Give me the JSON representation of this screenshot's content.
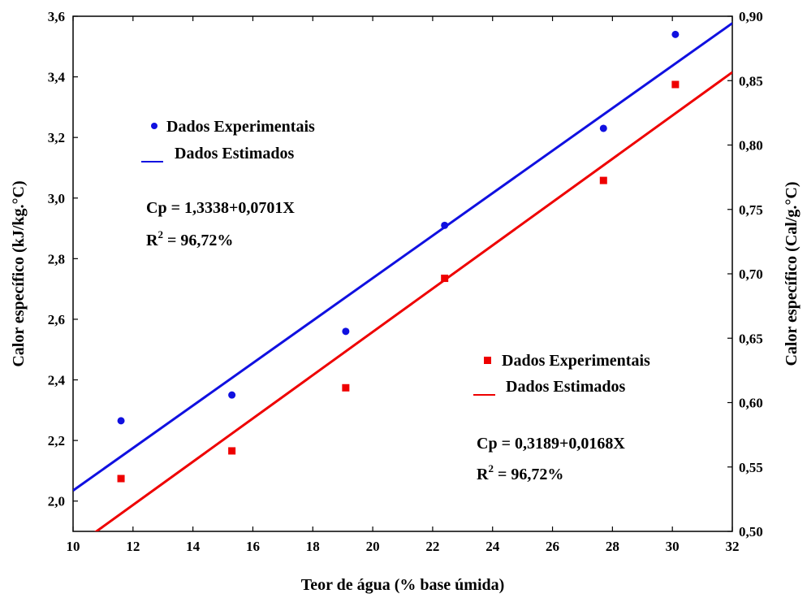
{
  "chart_data": {
    "type": "scatter",
    "xlabel": "Teor de água (% base úmida)",
    "ylabel": "Calor específico (kJ/kg.°C)",
    "ylabel_right": "Calor específico (Cal/g.°C)",
    "xlim": [
      10,
      32
    ],
    "ylim": [
      1.9,
      3.6
    ],
    "ylim_right": [
      0.5,
      0.9
    ],
    "x_ticks": [
      "10",
      "12",
      "14",
      "16",
      "18",
      "20",
      "22",
      "24",
      "26",
      "28",
      "30",
      "32"
    ],
    "y_ticks": [
      "2,0",
      "2,2",
      "2,4",
      "2,6",
      "2,8",
      "3,0",
      "3,2",
      "3,4",
      "3,6"
    ],
    "y_ticks_right": [
      "0,50",
      "0,55",
      "0,60",
      "0,65",
      "0,70",
      "0,75",
      "0,80",
      "0,85",
      "0,90"
    ],
    "grid": false,
    "series": [
      {
        "name": "Dados Experimentais",
        "axis": "left",
        "marker": "circle",
        "color": "#1010e0",
        "x": [
          11.6,
          15.3,
          19.1,
          22.4,
          27.7,
          30.1
        ],
        "y": [
          2.265,
          2.35,
          2.56,
          2.91,
          3.23,
          3.54
        ]
      },
      {
        "name": "Dados Estimados",
        "axis": "left",
        "kind": "line",
        "color": "#1010e0",
        "intercept": 1.3338,
        "slope": 0.0701
      },
      {
        "name": "Dados Experimentais",
        "axis": "right",
        "marker": "square",
        "color": "#ee0000",
        "x": [
          11.6,
          15.3,
          19.1,
          22.4,
          27.7,
          30.1
        ],
        "y": [
          0.541,
          0.5625,
          0.6115,
          0.6965,
          0.7725,
          0.847
        ]
      },
      {
        "name": "Dados Estimados",
        "axis": "right",
        "kind": "line",
        "color": "#ee0000",
        "intercept": 0.3189,
        "slope": 0.0168
      }
    ],
    "annotations": {
      "blue": {
        "legend_points": "Dados Experimentais",
        "legend_line": "Dados Estimados",
        "equation": "Cp = 1,3338+0,0701X",
        "r2_label": "R",
        "r2_sup": "2",
        "r2_value": " = 96,72%"
      },
      "red": {
        "legend_points": "Dados Experimentais",
        "legend_line": "Dados Estimados",
        "equation": "Cp = 0,3189+0,0168X",
        "r2_label": "R",
        "r2_sup": "2",
        "r2_value": " = 96,72%"
      }
    }
  }
}
